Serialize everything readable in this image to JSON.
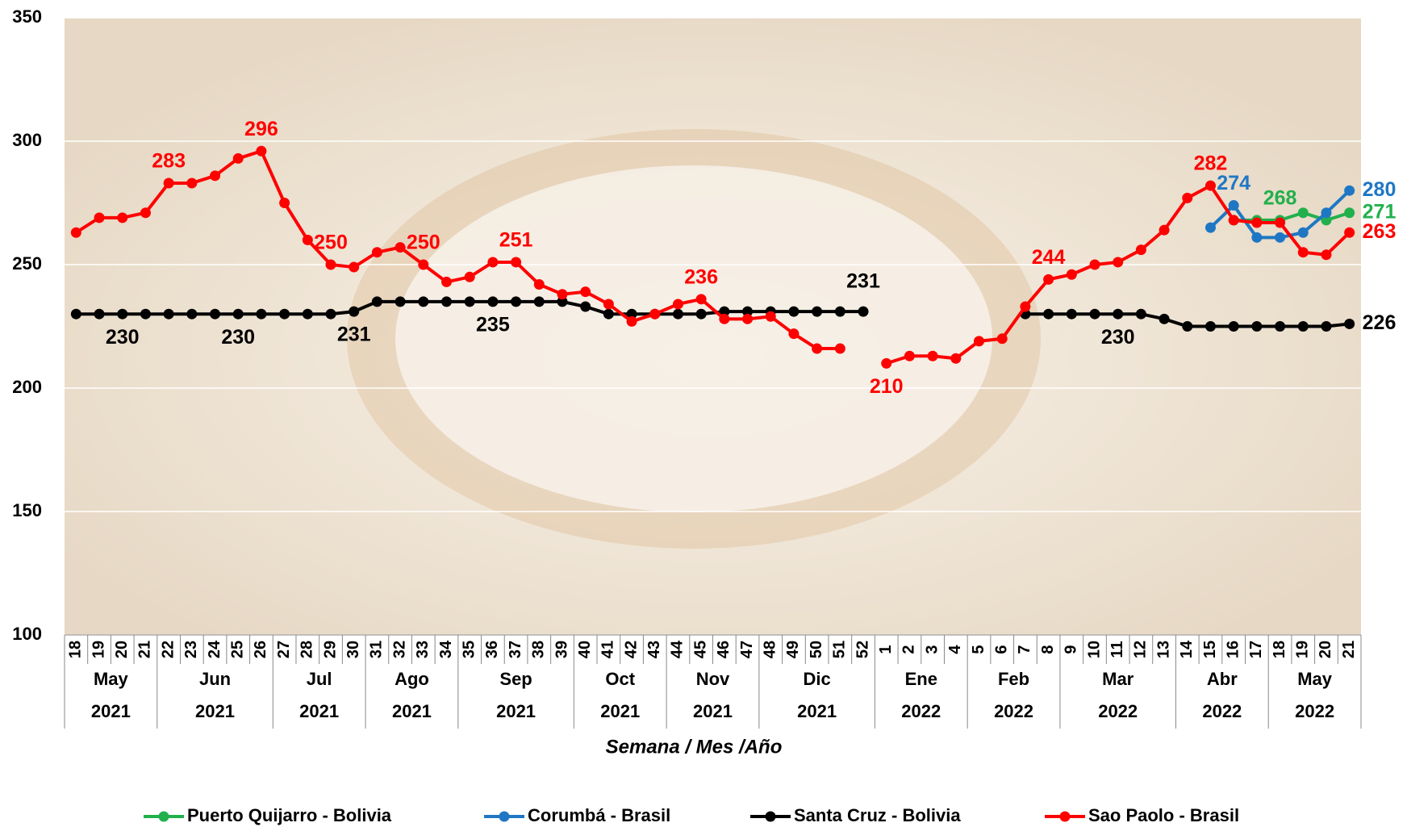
{
  "chart_data": {
    "type": "line",
    "x_title": "Semana / Mes /Año",
    "categories": [
      "18",
      "19",
      "20",
      "21",
      "22",
      "23",
      "24",
      "25",
      "26",
      "27",
      "28",
      "29",
      "30",
      "31",
      "32",
      "33",
      "34",
      "35",
      "36",
      "37",
      "38",
      "39",
      "40",
      "41",
      "42",
      "43",
      "44",
      "45",
      "46",
      "47",
      "48",
      "49",
      "50",
      "51",
      "52",
      "1",
      "2",
      "3",
      "4",
      "5",
      "6",
      "7",
      "8",
      "9",
      "10",
      "11",
      "12",
      "13",
      "14",
      "15",
      "16",
      "17",
      "18",
      "19",
      "20",
      "21"
    ],
    "groups": [
      {
        "month": "May",
        "year": "2021",
        "span": 4
      },
      {
        "month": "Jun",
        "year": "2021",
        "span": 5
      },
      {
        "month": "Jul",
        "year": "2021",
        "span": 4
      },
      {
        "month": "Ago",
        "year": "2021",
        "span": 4
      },
      {
        "month": "Sep",
        "year": "2021",
        "span": 5
      },
      {
        "month": "Oct",
        "year": "2021",
        "span": 4
      },
      {
        "month": "Nov",
        "year": "2021",
        "span": 4
      },
      {
        "month": "Dic",
        "year": "2021",
        "span": 5
      },
      {
        "month": "Ene",
        "year": "2022",
        "span": 4
      },
      {
        "month": "Feb",
        "year": "2022",
        "span": 4
      },
      {
        "month": "Mar",
        "year": "2022",
        "span": 5
      },
      {
        "month": "Abr",
        "year": "2022",
        "span": 4
      },
      {
        "month": "May",
        "year": "2022",
        "span": 4
      }
    ],
    "ylim": [
      100,
      350
    ],
    "yticks": [
      100,
      150,
      200,
      250,
      300,
      350
    ],
    "grid": true,
    "series": [
      {
        "name": "Puerto Quijarro - Bolivia",
        "color": "#22b04c",
        "values": [
          null,
          null,
          null,
          null,
          null,
          null,
          null,
          null,
          null,
          null,
          null,
          null,
          null,
          null,
          null,
          null,
          null,
          null,
          null,
          null,
          null,
          null,
          null,
          null,
          null,
          null,
          null,
          null,
          null,
          null,
          null,
          null,
          null,
          null,
          null,
          null,
          null,
          null,
          null,
          null,
          null,
          null,
          null,
          null,
          null,
          null,
          null,
          null,
          null,
          null,
          268,
          268,
          268,
          271,
          268,
          271
        ],
        "value_labels": [
          null,
          null,
          null,
          null,
          null,
          null,
          null,
          null,
          null,
          null,
          null,
          null,
          null,
          null,
          null,
          null,
          null,
          null,
          null,
          null,
          null,
          null,
          null,
          null,
          null,
          null,
          null,
          null,
          null,
          null,
          null,
          null,
          null,
          null,
          null,
          null,
          null,
          null,
          null,
          null,
          null,
          null,
          null,
          null,
          null,
          null,
          null,
          null,
          null,
          null,
          null,
          null,
          "268",
          null,
          null,
          "271"
        ]
      },
      {
        "name": "Corumbá - Brasil",
        "color": "#1f77c4",
        "values": [
          null,
          null,
          null,
          null,
          null,
          null,
          null,
          null,
          null,
          null,
          null,
          null,
          null,
          null,
          null,
          null,
          null,
          null,
          null,
          null,
          null,
          null,
          null,
          null,
          null,
          null,
          null,
          null,
          null,
          null,
          null,
          null,
          null,
          null,
          null,
          null,
          null,
          null,
          null,
          null,
          null,
          null,
          null,
          null,
          null,
          null,
          null,
          null,
          null,
          265,
          274,
          261,
          261,
          263,
          271,
          280
        ],
        "value_labels": [
          null,
          null,
          null,
          null,
          null,
          null,
          null,
          null,
          null,
          null,
          null,
          null,
          null,
          null,
          null,
          null,
          null,
          null,
          null,
          null,
          null,
          null,
          null,
          null,
          null,
          null,
          null,
          null,
          null,
          null,
          null,
          null,
          null,
          null,
          null,
          null,
          null,
          null,
          null,
          null,
          null,
          null,
          null,
          null,
          null,
          null,
          null,
          null,
          null,
          null,
          "274",
          null,
          null,
          null,
          null,
          "280"
        ]
      },
      {
        "name": "Santa Cruz - Bolivia",
        "color": "#000000",
        "values": [
          230,
          230,
          230,
          230,
          230,
          230,
          230,
          230,
          230,
          230,
          230,
          230,
          231,
          235,
          235,
          235,
          235,
          235,
          235,
          235,
          235,
          235,
          233,
          230,
          230,
          230,
          230,
          230,
          231,
          231,
          231,
          231,
          231,
          231,
          231,
          null,
          null,
          null,
          null,
          null,
          null,
          230,
          230,
          230,
          230,
          230,
          230,
          228,
          225,
          225,
          225,
          225,
          225,
          225,
          225,
          226
        ],
        "value_labels": [
          null,
          null,
          "230",
          null,
          null,
          null,
          null,
          "230",
          null,
          null,
          null,
          null,
          "231",
          null,
          null,
          null,
          null,
          null,
          "235",
          null,
          null,
          null,
          null,
          null,
          null,
          null,
          null,
          null,
          null,
          null,
          null,
          null,
          null,
          null,
          "231",
          null,
          null,
          null,
          null,
          null,
          null,
          null,
          null,
          null,
          null,
          "230",
          null,
          null,
          null,
          null,
          null,
          null,
          null,
          null,
          null,
          "226"
        ]
      },
      {
        "name": "Sao Paolo - Brasil",
        "color": "#ff0000",
        "values": [
          263,
          269,
          269,
          271,
          283,
          283,
          286,
          293,
          296,
          275,
          260,
          250,
          249,
          255,
          257,
          250,
          243,
          245,
          251,
          251,
          242,
          238,
          239,
          234,
          227,
          230,
          234,
          236,
          228,
          228,
          229,
          222,
          216,
          216,
          null,
          210,
          213,
          213,
          212,
          219,
          220,
          233,
          244,
          246,
          250,
          251,
          256,
          264,
          277,
          282,
          268,
          267,
          267,
          255,
          254,
          263
        ],
        "value_labels": [
          null,
          null,
          null,
          null,
          "283",
          null,
          null,
          null,
          "296",
          null,
          null,
          "250",
          null,
          null,
          null,
          "250",
          null,
          null,
          null,
          "251",
          null,
          null,
          null,
          null,
          null,
          null,
          null,
          "236",
          null,
          null,
          null,
          null,
          null,
          null,
          null,
          "210",
          null,
          null,
          null,
          null,
          null,
          null,
          "244",
          null,
          null,
          null,
          null,
          null,
          null,
          "282",
          null,
          null,
          null,
          null,
          null,
          "263"
        ]
      }
    ]
  }
}
